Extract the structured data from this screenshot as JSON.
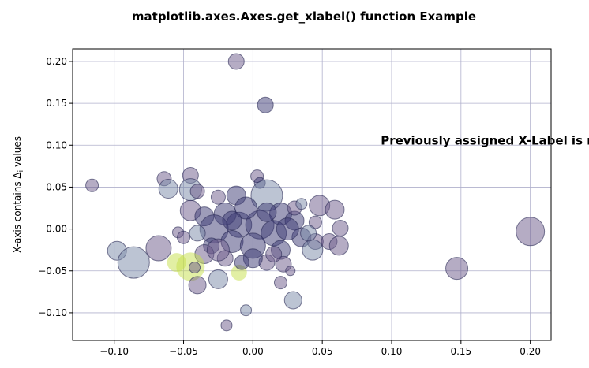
{
  "chart_data": {
    "type": "scatter",
    "title": "matplotlib.axes.Axes.get_xlabel() function Example",
    "xlabel": "",
    "ylabel": "X-axis contains Δ",
    "ylabel_subscript": "i",
    "ylabel_suffix": " values",
    "annotation": {
      "text": "Previously assigned X-Label is now Assigned to Y-Label",
      "x": 0.095,
      "y": 0.1
    },
    "xlim": [
      -0.13,
      0.215
    ],
    "ylim": [
      -0.133,
      0.215
    ],
    "xticks": [
      -0.1,
      -0.05,
      0.0,
      0.05,
      0.1,
      0.15,
      0.2
    ],
    "xtick_labels": [
      "−0.10",
      "−0.05",
      "0.00",
      "0.05",
      "0.10",
      "0.15",
      "0.20"
    ],
    "yticks": [
      -0.1,
      -0.05,
      0.0,
      0.05,
      0.1,
      0.15,
      0.2
    ],
    "ytick_labels": [
      "−0.10",
      "−0.05",
      "0.00",
      "0.05",
      "0.10",
      "0.15",
      "0.20"
    ],
    "grid": true,
    "alpha": 0.5,
    "colors": {
      "dark": "#3b3a74",
      "mid": "#6b5a8a",
      "light": "#7a8aa8",
      "yellow": "#c6e04a"
    },
    "points": [
      {
        "x": -0.012,
        "y": 0.2,
        "r": 10,
        "c": "mid"
      },
      {
        "x": 0.009,
        "y": 0.148,
        "r": 10,
        "c": "dark"
      },
      {
        "x": -0.116,
        "y": 0.052,
        "r": 8,
        "c": "mid"
      },
      {
        "x": -0.064,
        "y": 0.06,
        "r": 9,
        "c": "mid"
      },
      {
        "x": -0.061,
        "y": 0.048,
        "r": 12,
        "c": "light"
      },
      {
        "x": -0.045,
        "y": 0.064,
        "r": 10,
        "c": "mid"
      },
      {
        "x": -0.045,
        "y": 0.047,
        "r": 14,
        "c": "light"
      },
      {
        "x": -0.04,
        "y": 0.045,
        "r": 9,
        "c": "mid"
      },
      {
        "x": 0.003,
        "y": 0.063,
        "r": 8,
        "c": "mid"
      },
      {
        "x": 0.005,
        "y": 0.055,
        "r": 7,
        "c": "dark"
      },
      {
        "x": 0.01,
        "y": 0.04,
        "r": 20,
        "c": "light"
      },
      {
        "x": -0.012,
        "y": 0.04,
        "r": 12,
        "c": "dark"
      },
      {
        "x": -0.025,
        "y": 0.038,
        "r": 9,
        "c": "mid"
      },
      {
        "x": 0.048,
        "y": 0.028,
        "r": 13,
        "c": "mid"
      },
      {
        "x": 0.059,
        "y": 0.023,
        "r": 12,
        "c": "mid"
      },
      {
        "x": -0.045,
        "y": 0.022,
        "r": 13,
        "c": "mid"
      },
      {
        "x": -0.035,
        "y": 0.015,
        "r": 12,
        "c": "dark"
      },
      {
        "x": -0.02,
        "y": 0.018,
        "r": 14,
        "c": "dark"
      },
      {
        "x": 0.02,
        "y": 0.018,
        "r": 14,
        "c": "dark"
      },
      {
        "x": 0.03,
        "y": 0.01,
        "r": 12,
        "c": "dark"
      },
      {
        "x": 0.045,
        "y": 0.008,
        "r": 8,
        "c": "mid"
      },
      {
        "x": 0.063,
        "y": 0.001,
        "r": 10,
        "c": "mid"
      },
      {
        "x": -0.01,
        "y": 0.005,
        "r": 16,
        "c": "dark"
      },
      {
        "x": 0.005,
        "y": 0.005,
        "r": 18,
        "c": "dark"
      },
      {
        "x": -0.028,
        "y": 0.0,
        "r": 18,
        "c": "dark"
      },
      {
        "x": 0.015,
        "y": -0.005,
        "r": 16,
        "c": "dark"
      },
      {
        "x": -0.04,
        "y": -0.005,
        "r": 10,
        "c": "light"
      },
      {
        "x": -0.054,
        "y": -0.004,
        "r": 7,
        "c": "mid"
      },
      {
        "x": -0.05,
        "y": -0.01,
        "r": 8,
        "c": "mid"
      },
      {
        "x": 0.035,
        "y": -0.01,
        "r": 12,
        "c": "dark"
      },
      {
        "x": 0.045,
        "y": -0.015,
        "r": 10,
        "c": "mid"
      },
      {
        "x": 0.055,
        "y": -0.015,
        "r": 10,
        "c": "mid"
      },
      {
        "x": 0.043,
        "y": -0.025,
        "r": 13,
        "c": "light"
      },
      {
        "x": 0.062,
        "y": -0.02,
        "r": 12,
        "c": "mid"
      },
      {
        "x": -0.03,
        "y": -0.02,
        "r": 10,
        "c": "dark"
      },
      {
        "x": -0.015,
        "y": -0.015,
        "r": 14,
        "c": "dark"
      },
      {
        "x": 0.0,
        "y": -0.02,
        "r": 16,
        "c": "dark"
      },
      {
        "x": 0.02,
        "y": -0.025,
        "r": 12,
        "c": "dark"
      },
      {
        "x": -0.098,
        "y": -0.026,
        "r": 12,
        "c": "light"
      },
      {
        "x": -0.068,
        "y": -0.023,
        "r": 16,
        "c": "mid"
      },
      {
        "x": -0.086,
        "y": -0.04,
        "r": 20,
        "c": "light"
      },
      {
        "x": -0.035,
        "y": -0.03,
        "r": 12,
        "c": "mid"
      },
      {
        "x": -0.02,
        "y": -0.035,
        "r": 10,
        "c": "mid"
      },
      {
        "x": 0.01,
        "y": -0.04,
        "r": 10,
        "c": "mid"
      },
      {
        "x": 0.022,
        "y": -0.042,
        "r": 10,
        "c": "mid"
      },
      {
        "x": -0.045,
        "y": -0.045,
        "r": 18,
        "c": "yellow"
      },
      {
        "x": -0.055,
        "y": -0.04,
        "r": 12,
        "c": "yellow"
      },
      {
        "x": -0.042,
        "y": -0.046,
        "r": 7,
        "c": "mid"
      },
      {
        "x": -0.025,
        "y": -0.06,
        "r": 12,
        "c": "light"
      },
      {
        "x": -0.04,
        "y": -0.067,
        "r": 11,
        "c": "mid"
      },
      {
        "x": -0.01,
        "y": -0.052,
        "r": 10,
        "c": "yellow"
      },
      {
        "x": 0.02,
        "y": -0.064,
        "r": 8,
        "c": "mid"
      },
      {
        "x": 0.027,
        "y": -0.05,
        "r": 6,
        "c": "mid"
      },
      {
        "x": 0.029,
        "y": -0.085,
        "r": 11,
        "c": "light"
      },
      {
        "x": -0.005,
        "y": -0.097,
        "r": 7,
        "c": "light"
      },
      {
        "x": -0.019,
        "y": -0.115,
        "r": 7,
        "c": "mid"
      },
      {
        "x": 0.147,
        "y": -0.047,
        "r": 14,
        "c": "mid"
      },
      {
        "x": 0.2,
        "y": -0.003,
        "r": 18,
        "c": "mid"
      },
      {
        "x": -0.005,
        "y": 0.025,
        "r": 14,
        "c": "dark"
      },
      {
        "x": 0.03,
        "y": 0.025,
        "r": 9,
        "c": "mid"
      },
      {
        "x": 0.035,
        "y": 0.03,
        "r": 7,
        "c": "light"
      },
      {
        "x": 0.04,
        "y": -0.005,
        "r": 10,
        "c": "light"
      },
      {
        "x": -0.025,
        "y": -0.025,
        "r": 14,
        "c": "mid"
      },
      {
        "x": 0.01,
        "y": 0.02,
        "r": 12,
        "c": "dark"
      },
      {
        "x": -0.015,
        "y": 0.01,
        "r": 12,
        "c": "dark"
      },
      {
        "x": 0.025,
        "y": 0.0,
        "r": 14,
        "c": "dark"
      },
      {
        "x": 0.0,
        "y": -0.035,
        "r": 12,
        "c": "dark"
      },
      {
        "x": 0.015,
        "y": -0.03,
        "r": 10,
        "c": "mid"
      },
      {
        "x": -0.008,
        "y": -0.04,
        "r": 9,
        "c": "dark"
      }
    ]
  }
}
